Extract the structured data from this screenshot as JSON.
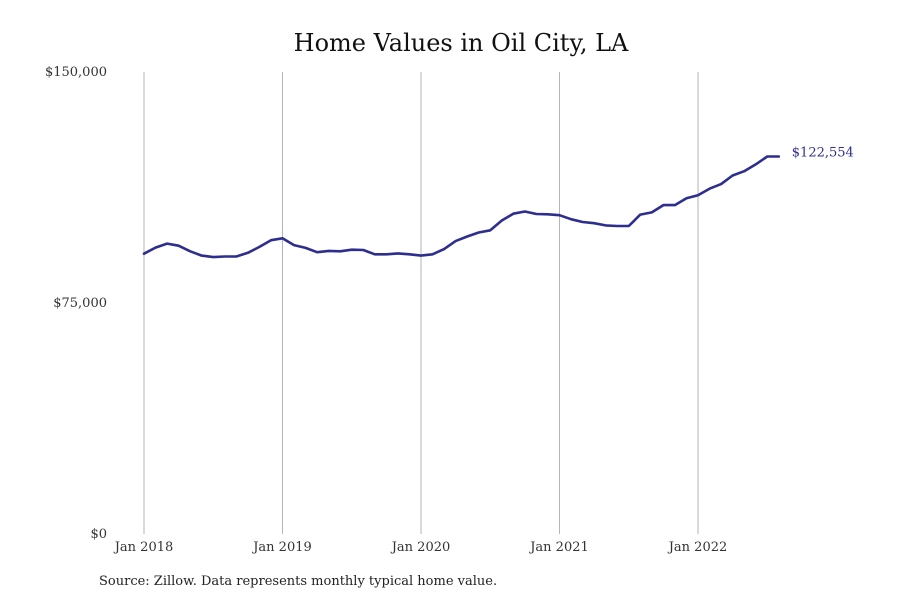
{
  "chart_data": {
    "type": "line",
    "title": "Home Values in Oil City, LA",
    "xlabel": "",
    "ylabel": "",
    "ylim": [
      0,
      150000
    ],
    "y_ticks": [
      "$0",
      "$75,000",
      "$150,000"
    ],
    "x_ticks": [
      "Jan 2018",
      "Jan 2019",
      "Jan 2020",
      "Jan 2021",
      "Jan 2022"
    ],
    "grid": "vertical",
    "legend": "none",
    "line_color": "#2e2e8f",
    "series": [
      {
        "x": [
          "2018-01",
          "2018-02",
          "2018-03",
          "2018-04",
          "2018-05",
          "2018-06",
          "2018-07",
          "2018-08",
          "2018-09",
          "2018-10",
          "2018-11",
          "2018-12",
          "2019-01",
          "2019-02",
          "2019-03",
          "2019-04",
          "2019-05",
          "2019-06",
          "2019-07",
          "2019-08",
          "2019-09",
          "2019-10",
          "2019-11",
          "2019-12",
          "2020-01",
          "2020-02",
          "2020-03",
          "2020-04",
          "2020-05",
          "2020-06",
          "2020-07",
          "2020-08",
          "2020-09",
          "2020-10",
          "2020-11",
          "2020-12",
          "2021-01",
          "2021-02",
          "2021-03",
          "2021-04",
          "2021-05",
          "2021-06",
          "2021-07",
          "2021-08",
          "2021-09",
          "2021-10",
          "2021-11",
          "2021-12",
          "2022-01",
          "2022-02",
          "2022-03",
          "2022-04",
          "2022-05",
          "2022-06",
          "2022-07",
          "2022-08"
        ],
        "values": [
          91000,
          93000,
          94300,
          93600,
          91800,
          90400,
          89900,
          90100,
          90100,
          91300,
          93200,
          95400,
          96000,
          93800,
          92900,
          91500,
          91900,
          91800,
          92300,
          92200,
          90800,
          90800,
          91100,
          90800,
          90400,
          90800,
          92500,
          95100,
          96600,
          97900,
          98600,
          101800,
          104000,
          104700,
          103900,
          103800,
          103500,
          102200,
          101300,
          100900,
          100200,
          100000,
          100000,
          103700,
          104400,
          106800,
          106800,
          109000,
          110000,
          112100,
          113600,
          116400,
          117800,
          120000,
          122554,
          122554
        ],
        "end_label": "$122,554"
      }
    ]
  },
  "source_note": "Source: Zillow. Data represents monthly typical home value."
}
